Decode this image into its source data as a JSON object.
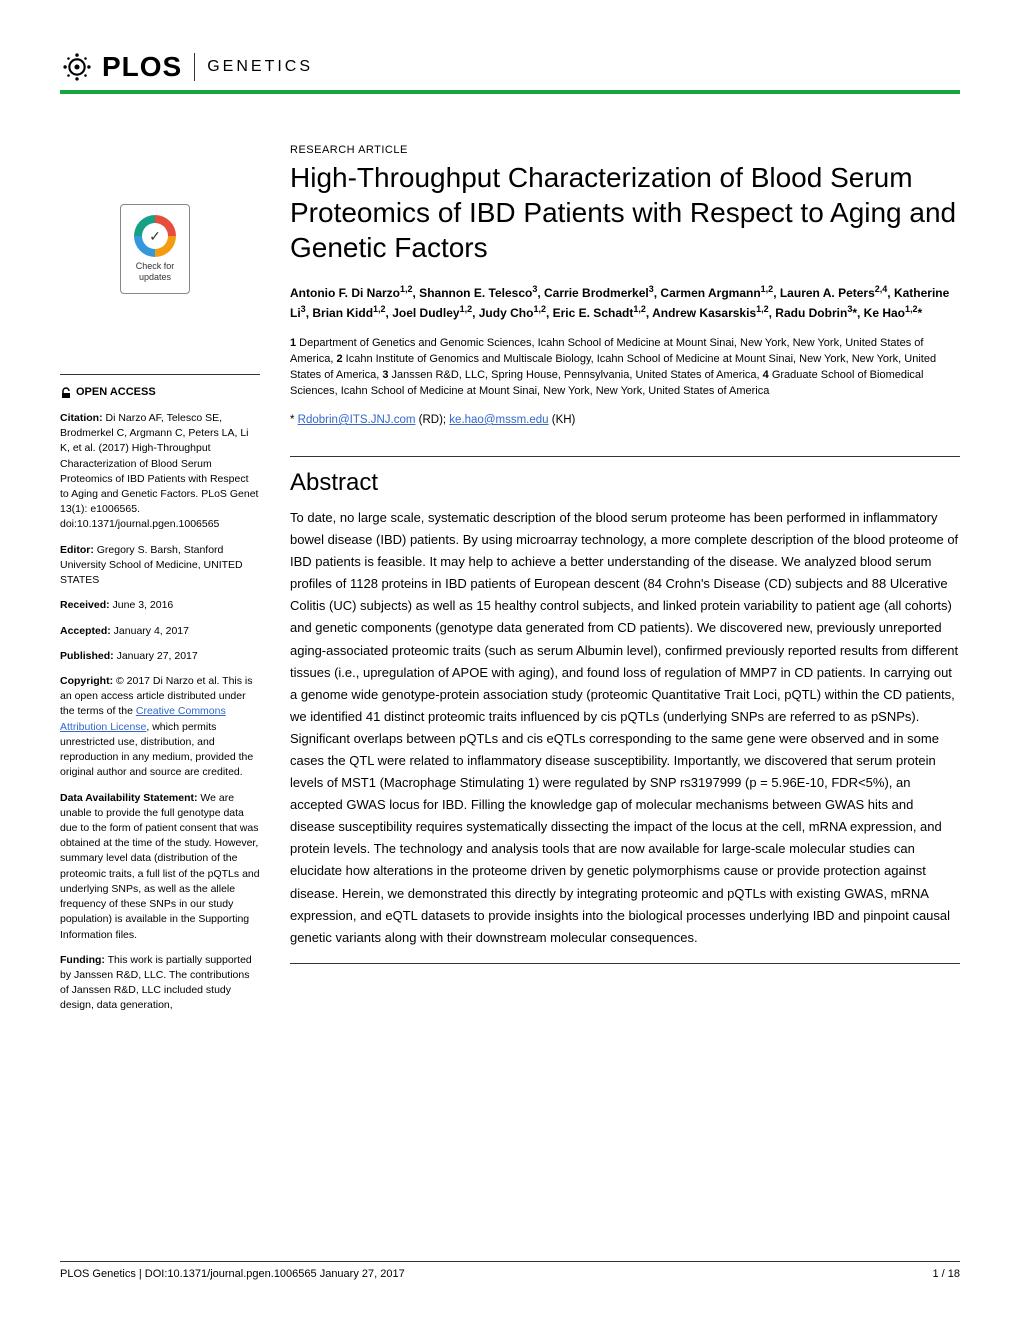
{
  "journal": {
    "name": "PLOS",
    "section": "GENETICS",
    "accentColor": "#16a63f"
  },
  "crossmark": {
    "line1": "Check for",
    "line2": "updates"
  },
  "article": {
    "type": "RESEARCH ARTICLE",
    "title": "High-Throughput Characterization of Blood Serum Proteomics of IBD Patients with Respect to Aging and Genetic Factors",
    "authorsHtml": "Antonio F. Di Narzo<sup>1,2</sup>, Shannon E. Telesco<sup>3</sup>, Carrie Brodmerkel<sup>3</sup>, Carmen Argmann<sup>1,2</sup>, Lauren A. Peters<sup>2,4</sup>, Katherine Li<sup>3</sup>, Brian Kidd<sup>1,2</sup>, Joel Dudley<sup>1,2</sup>, Judy Cho<sup>1,2</sup>, Eric E. Schadt<sup>1,2</sup>, Andrew Kasarskis<sup>1,2</sup>, Radu Dobrin<sup>3</sup>*, Ke Hao<sup>1,2</sup>*",
    "affiliationsHtml": "<b>1</b> Department of Genetics and Genomic Sciences, Icahn School of Medicine at Mount Sinai, New York, New York, United States of America, <b>2</b> Icahn Institute of Genomics and Multiscale Biology, Icahn School of Medicine at Mount Sinai, New York, New York, United States of America, <b>3</b> Janssen R&D, LLC, Spring House, Pennsylvania, United States of America, <b>4</b> Graduate School of Biomedical Sciences, Icahn School of Medicine at Mount Sinai, New York, New York, United States of America",
    "corresp": {
      "prefix": "* ",
      "email1": "Rdobrin@ITS.JNJ.com",
      "suffix1": " (RD); ",
      "email2": "ke.hao@mssm.edu",
      "suffix2": " (KH)"
    },
    "abstractHeading": "Abstract",
    "abstract": "To date, no large scale, systematic description of the blood serum proteome has been performed in inflammatory bowel disease (IBD) patients. By using microarray technology, a more complete description of the blood proteome of IBD patients is feasible. It may help to achieve a better understanding of the disease. We analyzed blood serum profiles of 1128 proteins in IBD patients of European descent (84 Crohn's Disease (CD) subjects and 88 Ulcerative Colitis (UC) subjects) as well as 15 healthy control subjects, and linked protein variability to patient age (all cohorts) and genetic components (genotype data generated from CD patients). We discovered new, previously unreported aging-associated proteomic traits (such as serum Albumin level), confirmed previously reported results from different tissues (i.e., upregulation of APOE with aging), and found loss of regulation of MMP7 in CD patients. In carrying out a genome wide genotype-protein association study (proteomic Quantitative Trait Loci, pQTL) within the CD patients, we identified 41 distinct proteomic traits influenced by cis pQTLs (underlying SNPs are referred to as pSNPs). Significant overlaps between pQTLs and cis eQTLs corresponding to the same gene were observed and in some cases the QTL were related to inflammatory disease susceptibility. Importantly, we discovered that serum protein levels of MST1 (Macrophage Stimulating 1) were regulated by SNP rs3197999 (p = 5.96E-10, FDR<5%), an accepted GWAS locus for IBD. Filling the knowledge gap of molecular mechanisms between GWAS hits and disease susceptibility requires systematically dissecting the impact of the locus at the cell, mRNA expression, and protein levels. The technology and analysis tools that are now available for large-scale molecular studies can elucidate how alterations in the proteome driven by genetic polymorphisms cause or provide protection against disease. Herein, we demonstrated this directly by integrating proteomic and pQTLs with existing GWAS, mRNA expression, and eQTL datasets to provide insights into the biological processes underlying IBD and pinpoint causal genetic variants along with their downstream molecular consequences."
  },
  "sidebar": {
    "openAccess": "OPEN ACCESS",
    "citationLabel": "Citation:",
    "citation": " Di Narzo AF, Telesco SE, Brodmerkel C, Argmann C, Peters LA, Li K, et al. (2017) High-Throughput Characterization of Blood Serum Proteomics of IBD Patients with Respect to Aging and Genetic Factors. PLoS Genet 13(1): e1006565. doi:10.1371/journal.pgen.1006565",
    "editorLabel": "Editor:",
    "editor": " Gregory S. Barsh, Stanford University School of Medicine, UNITED STATES",
    "receivedLabel": "Received:",
    "received": " June 3, 2016",
    "acceptedLabel": "Accepted:",
    "accepted": " January 4, 2017",
    "publishedLabel": "Published:",
    "published": " January 27, 2017",
    "copyrightLabel": "Copyright:",
    "copyrightPre": " © 2017 Di Narzo et al. This is an open access article distributed under the terms of the ",
    "copyrightLink": "Creative Commons Attribution License",
    "copyrightPost": ", which permits unrestricted use, distribution, and reproduction in any medium, provided the original author and source are credited.",
    "dataLabel": "Data Availability Statement:",
    "data": " We are unable to provide the full genotype data due to the form of patient consent that was obtained at the time of the study. However, summary level data (distribution of the proteomic traits, a full list of the pQTLs and underlying SNPs, as well as the allele frequency of these SNPs in our study population) is available in the Supporting Information files.",
    "fundingLabel": "Funding:",
    "funding": " This work is partially supported by Janssen R&D, LLC. The contributions of Janssen R&D, LLC included study design, data generation,"
  },
  "footer": {
    "left": "PLOS Genetics | DOI:10.1371/journal.pgen.1006565    January 27, 2017",
    "right": "1 / 18"
  }
}
